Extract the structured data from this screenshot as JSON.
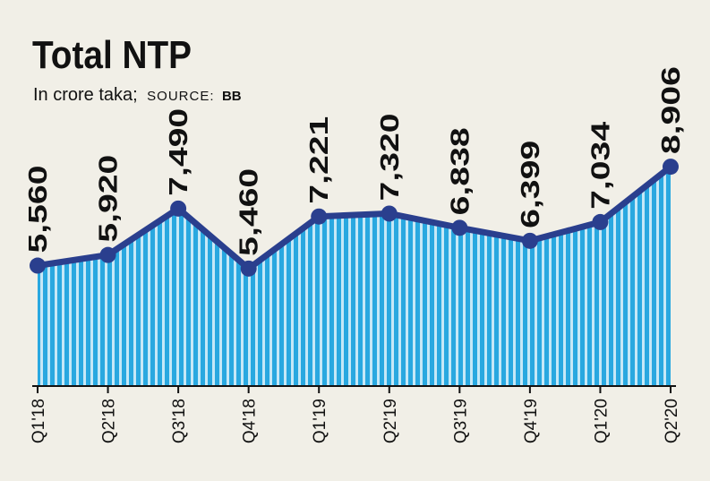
{
  "chart_data": {
    "type": "area",
    "title": "Total NTP",
    "subtitle_unit": "In crore taka;",
    "subtitle_source_label": "SOURCE:",
    "subtitle_source": "BB",
    "categories": [
      "Q1'18",
      "Q2'18",
      "Q3'18",
      "Q4'18",
      "Q1'19",
      "Q2'19",
      "Q3'19",
      "Q4'19",
      "Q1'20",
      "Q2'20"
    ],
    "values": [
      5560,
      5920,
      7490,
      5460,
      7221,
      7320,
      6838,
      6399,
      7034,
      8906
    ],
    "value_labels": [
      "5,560",
      "5,920",
      "7,490",
      "5,460",
      "7,221",
      "7,320",
      "6,838",
      "6,399",
      "7,034",
      "8,906"
    ],
    "xlabel": "",
    "ylabel": "",
    "grid": false,
    "legend": "none"
  },
  "colors": {
    "background": "#f1efe7",
    "line": "#2a3f8e",
    "marker": "#2a3f8e",
    "area_stripe": "#29a8e0",
    "area_stripe_light": "#c6e8f7",
    "text": "#111111",
    "axis": "#111111"
  }
}
